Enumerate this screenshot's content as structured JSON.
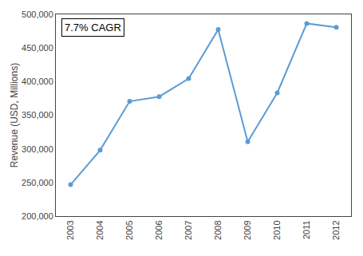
{
  "chart_data": {
    "type": "line",
    "x": [
      2003,
      2004,
      2005,
      2006,
      2007,
      2008,
      2009,
      2010,
      2011,
      2012
    ],
    "values": [
      246738,
      298035,
      370680,
      377635,
      404552,
      477359,
      310586,
      383221,
      486429,
      480681
    ],
    "color": "#5B9BD5",
    "marker": "circle",
    "ylabel": "Revenue (USD, Millions)",
    "annotation": "7.7% CAGR",
    "xlim": [
      2002.5,
      2012.5
    ],
    "xticks": [
      2003,
      2004,
      2005,
      2006,
      2007,
      2008,
      2009,
      2010,
      2011,
      2012
    ],
    "ylim": [
      200000,
      500000
    ],
    "yticks": [
      {
        "value": 200000,
        "label": "200,000"
      },
      {
        "value": 250000,
        "label": "250,000"
      },
      {
        "value": 300000,
        "label": "300,000"
      },
      {
        "value": 350000,
        "label": "350,000"
      },
      {
        "value": 400000,
        "label": "400,000"
      },
      {
        "value": 450000,
        "label": "450,000"
      },
      {
        "value": 500000,
        "label": "500,000"
      }
    ],
    "grid": false
  }
}
